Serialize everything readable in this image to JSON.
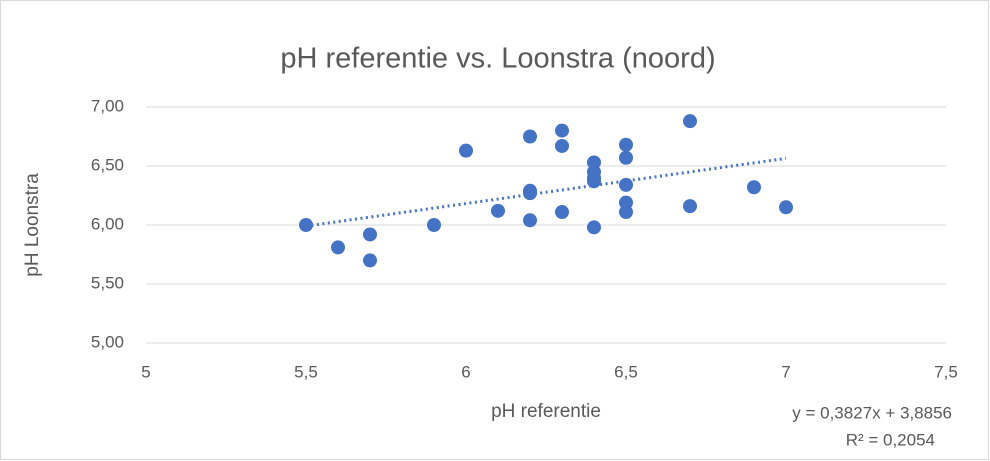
{
  "chart_data": {
    "type": "scatter",
    "title": "pH referentie vs. Loonstra (noord)",
    "x_label": "pH referentie",
    "y_label": "pH Loonstra",
    "series": [
      {
        "color": "#4472c4",
        "x": [
          5.5,
          5.6,
          5.7,
          5.7,
          5.9,
          6.0,
          6.1,
          6.2,
          6.2,
          6.2,
          6.2,
          6.3,
          6.3,
          6.3,
          6.4,
          6.4,
          6.4,
          6.4,
          6.4,
          6.5,
          6.5,
          6.5,
          6.5,
          6.5,
          6.7,
          6.7,
          6.9,
          7.0
        ],
        "values": [
          6.0,
          5.81,
          5.92,
          5.7,
          6.0,
          6.63,
          6.12,
          6.75,
          6.29,
          6.27,
          6.04,
          6.8,
          6.67,
          6.11,
          6.53,
          6.45,
          6.4,
          6.37,
          5.98,
          6.68,
          6.57,
          6.34,
          6.19,
          6.11,
          6.88,
          6.16,
          6.32,
          6.15
        ]
      }
    ],
    "trendline": {
      "slope": 0.3827,
      "intercept": 3.8856,
      "equation": "y = 0,3827x + 3,8856",
      "r2_label": "R² = 0,2054"
    },
    "xlim": [
      5,
      7.5
    ],
    "xticks": [
      5,
      {
        "value": 5.5,
        "label": "5,5"
      },
      6,
      {
        "value": 6.5,
        "label": "6,5"
      },
      7,
      {
        "value": 7.5,
        "label": "7,5"
      }
    ],
    "ylim": [
      5,
      7
    ],
    "yticks": [
      {
        "value": 5,
        "label": "5,00"
      },
      {
        "value": 5.5,
        "label": "5,50"
      },
      {
        "value": 6,
        "label": "6,00"
      },
      {
        "value": 6.5,
        "label": "6,50"
      },
      {
        "value": 7,
        "label": "7,00"
      }
    ],
    "grid": true
  }
}
